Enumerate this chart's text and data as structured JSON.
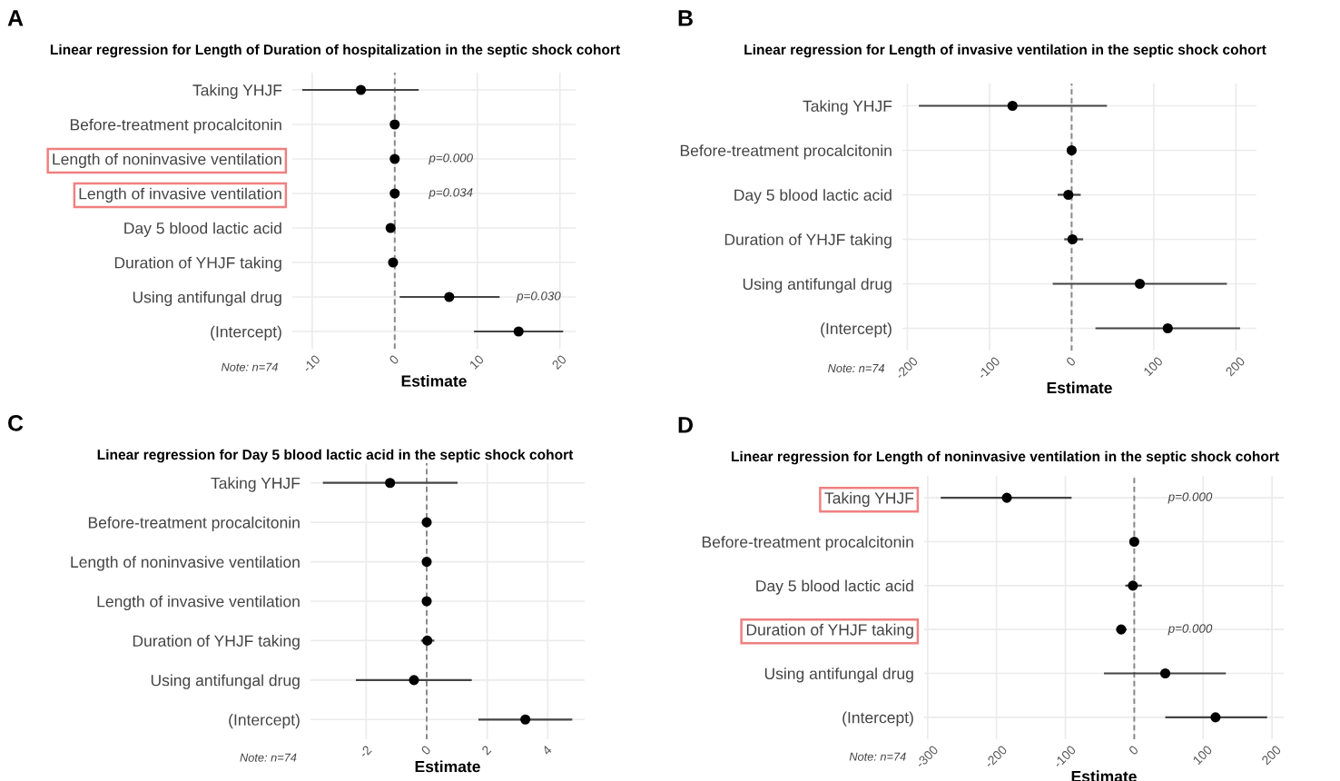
{
  "chart_data": [
    {
      "type": "scatter",
      "orientation": "horizontal",
      "title": "Linear regression for Length of Duration of hospitalization in the septic shock cohort",
      "xlabel": "Estimate",
      "categories": [
        "Taking YHJF",
        "Before-treatment procalcitonin",
        "Length of noninvasive ventilation",
        "Length of invasive ventilation",
        "Day 5 blood lactic acid",
        "Duration of YHJF taking",
        "Using antifungal drug",
        "(Intercept)"
      ],
      "values": [
        -4.1,
        0,
        0,
        0,
        -0.5,
        -0.2,
        6.6,
        15.0
      ],
      "errors": [
        [
          -11.2,
          2.9
        ],
        null,
        null,
        null,
        null,
        null,
        [
          0.6,
          12.7
        ],
        [
          9.6,
          20.4
        ]
      ],
      "color": "#000000",
      "marker": "circle",
      "grid": true,
      "xlim": [
        -12.4,
        21.9
      ],
      "xticks": [
        -10,
        0,
        10,
        20
      ],
      "ref_lines": [
        {
          "axis": "x",
          "value": 0,
          "line_style": "dashed",
          "color": "#888888"
        }
      ],
      "annotations": [
        "A",
        "Note: n=74",
        "p=0.000",
        "p=0.034",
        "p=0.030"
      ]
    },
    {
      "type": "scatter",
      "orientation": "horizontal",
      "title": "Linear regression for Length of invasive ventilation in the septic shock cohort",
      "xlabel": "Estimate",
      "categories": [
        "Taking YHJF",
        "Before-treatment procalcitonin",
        "Day 5 blood lactic acid",
        "Duration of YHJF taking",
        "Using antifungal drug",
        "(Intercept)"
      ],
      "values": [
        -72,
        0,
        -4,
        1,
        83,
        117
      ],
      "errors": [
        [
          -186,
          43
        ],
        null,
        [
          -17,
          11
        ],
        [
          -9,
          14
        ],
        [
          -23,
          189
        ],
        [
          29,
          205
        ]
      ],
      "color": "#000000",
      "marker": "circle",
      "grid": true,
      "xlim": [
        -206,
        225
      ],
      "xticks": [
        -200,
        -100,
        0,
        100,
        200
      ],
      "ref_lines": [
        {
          "axis": "x",
          "value": 0,
          "line_style": "dashed",
          "color": "#888888"
        }
      ],
      "annotations": [
        "B",
        "Note: n=74"
      ]
    },
    {
      "type": "scatter",
      "orientation": "horizontal",
      "title": "Linear regression for Day 5 blood lactic acid in the septic shock cohort",
      "xlabel": "Estimate",
      "categories": [
        "Taking YHJF",
        "Before-treatment procalcitonin",
        "Length of noninvasive ventilation",
        "Length of invasive ventilation",
        "Duration of YHJF taking",
        "Using antifungal drug",
        "(Intercept)"
      ],
      "values": [
        -1.21,
        0,
        0,
        0,
        0.02,
        -0.42,
        3.26
      ],
      "errors": [
        [
          -3.43,
          1.02
        ],
        null,
        null,
        null,
        [
          -0.19,
          0.25
        ],
        [
          -2.34,
          1.49
        ],
        [
          1.71,
          4.81
        ]
      ],
      "color": "#000000",
      "marker": "circle",
      "grid": true,
      "xlim": [
        -3.84,
        5.22
      ],
      "xticks": [
        -2,
        0,
        2,
        4
      ],
      "ref_lines": [
        {
          "axis": "x",
          "value": 0,
          "line_style": "dashed",
          "color": "#888888"
        }
      ],
      "annotations": [
        "C",
        "Note: n=74"
      ]
    },
    {
      "type": "scatter",
      "orientation": "horizontal",
      "title": "Linear regression for Length of noninvasive ventilation in the septic shock cohort",
      "xlabel": "Estimate",
      "categories": [
        "Taking YHJF",
        "Before-treatment procalcitonin",
        "Day 5 blood lactic acid",
        "Duration of YHJF taking",
        "Using antifungal drug",
        "(Intercept)"
      ],
      "values": [
        -185,
        0,
        -2,
        -19,
        45,
        118
      ],
      "errors": [
        [
          -281,
          -91
        ],
        null,
        [
          -13,
          11
        ],
        [
          -26,
          -11
        ],
        [
          -44,
          133
        ],
        [
          45,
          193
        ]
      ],
      "color": "#000000",
      "marker": "circle",
      "grid": true,
      "xlim": [
        -305,
        217
      ],
      "xticks": [
        -300,
        -200,
        -100,
        0,
        100,
        200
      ],
      "ref_lines": [
        {
          "axis": "x",
          "value": 0,
          "line_style": "dashed",
          "color": "#888888"
        }
      ],
      "annotations": [
        "D",
        "Note: n=74",
        "p=0.000",
        "p=0.000"
      ]
    }
  ]
}
